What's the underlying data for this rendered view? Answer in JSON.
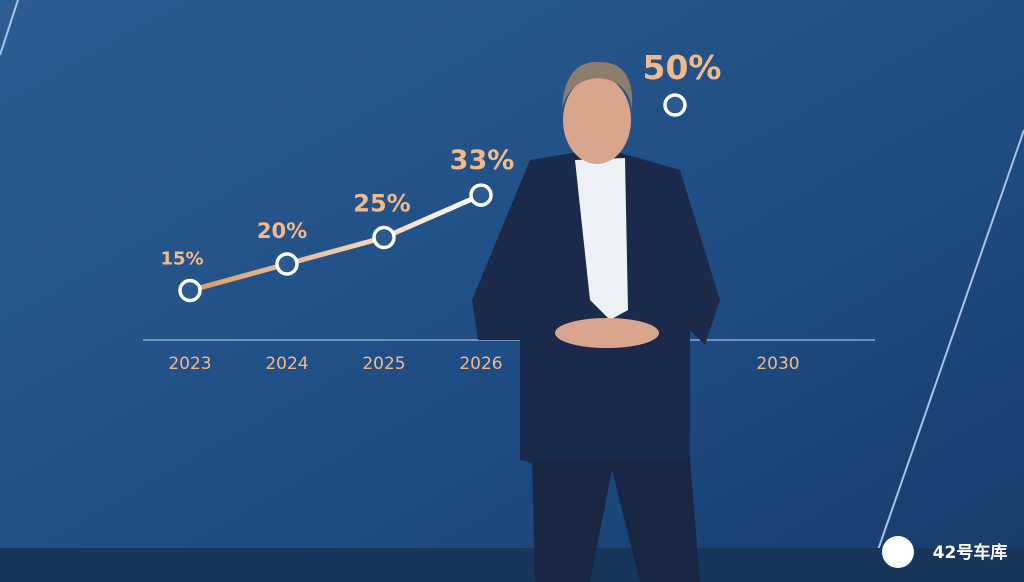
{
  "chart_data": {
    "type": "line",
    "categories": [
      "2023",
      "2024",
      "2025",
      "2026",
      null,
      null,
      "2030"
    ],
    "values": [
      15,
      20,
      25,
      33,
      null,
      50,
      null
    ],
    "value_labels": [
      "15%",
      "20%",
      "25%",
      "33%",
      null,
      "50%",
      null
    ],
    "color": "#e8a46a"
  },
  "watermark": "42号车库"
}
